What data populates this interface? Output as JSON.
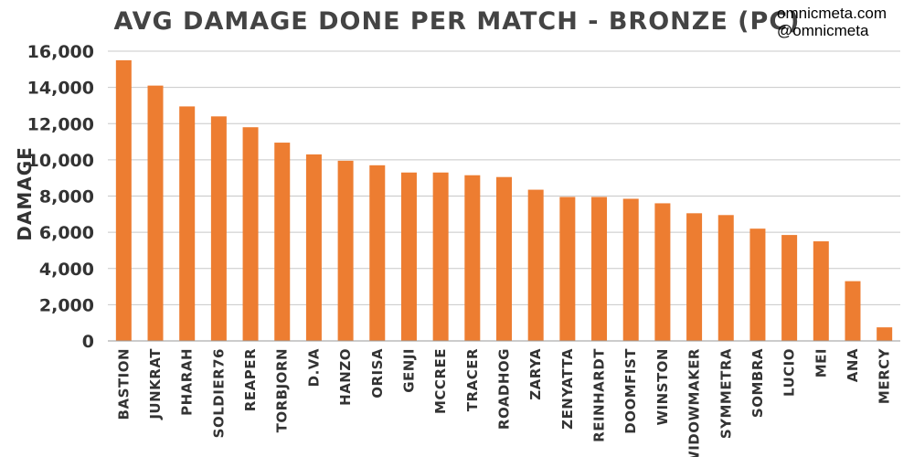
{
  "watermark": {
    "site": "omnicmeta.com",
    "handle": "@omnicmeta"
  },
  "chart_data": {
    "type": "bar",
    "title": "AVG DAMAGE DONE PER MATCH - BRONZE (PC)",
    "xlabel": "",
    "ylabel": "DAMAGE",
    "ylim": [
      0,
      16000
    ],
    "yticks": [
      0,
      2000,
      4000,
      6000,
      8000,
      10000,
      12000,
      14000,
      16000
    ],
    "ytick_labels": [
      "0",
      "2,000",
      "4,000",
      "6,000",
      "8,000",
      "10,000",
      "12,000",
      "14,000",
      "16,000"
    ],
    "grid": true,
    "bar_color": "#ed7d31",
    "categories": [
      "BASTION",
      "JUNKRAT",
      "PHARAH",
      "SOLDIER76",
      "REAPER",
      "TORBJORN",
      "D.VA",
      "HANZO",
      "ORISA",
      "GENJI",
      "MCCREE",
      "TRACER",
      "ROADHOG",
      "ZARYA",
      "ZENYATTA",
      "REINHARDT",
      "DOOMFIST",
      "WINSTON",
      "WIDOWMAKER",
      "SYMMETRA",
      "SOMBRA",
      "LUCIO",
      "MEI",
      "ANA",
      "MERCY"
    ],
    "values": [
      15500,
      14100,
      12950,
      12400,
      11800,
      10950,
      10300,
      9950,
      9700,
      9300,
      9300,
      9150,
      9050,
      8350,
      7950,
      7950,
      7850,
      7600,
      7050,
      6950,
      6200,
      5850,
      5500,
      3300,
      750
    ]
  }
}
